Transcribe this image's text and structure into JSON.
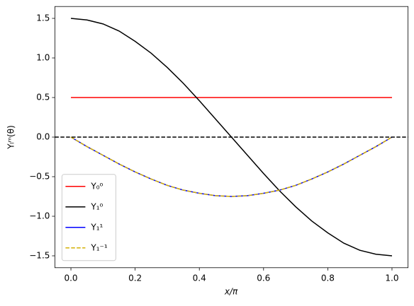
{
  "chart_data": {
    "type": "line",
    "xlabel": "x/π",
    "ylabel": "Yₗᵐ(θ)",
    "x": [
      0,
      0.05,
      0.1,
      0.15,
      0.2,
      0.25,
      0.3,
      0.35,
      0.4,
      0.45,
      0.5,
      0.55,
      0.6,
      0.65,
      0.7,
      0.75,
      0.8,
      0.85,
      0.9,
      0.95,
      1
    ],
    "series": [
      {
        "name": "Y₀⁰",
        "color": "#ff0000",
        "dashed": false,
        "values": [
          0.5,
          0.5,
          0.5,
          0.5,
          0.5,
          0.5,
          0.5,
          0.5,
          0.5,
          0.5,
          0.5,
          0.5,
          0.5,
          0.5,
          0.5,
          0.5,
          0.5,
          0.5,
          0.5,
          0.5,
          0.5
        ]
      },
      {
        "name": "Y₁⁰",
        "color": "#000000",
        "dashed": false,
        "values": [
          1.5,
          1.48,
          1.43,
          1.34,
          1.21,
          1.06,
          0.88,
          0.68,
          0.46,
          0.23,
          0,
          -0.23,
          -0.46,
          -0.68,
          -0.88,
          -1.06,
          -1.21,
          -1.34,
          -1.43,
          -1.48,
          -1.5
        ]
      },
      {
        "name": "Y₁¹",
        "color": "#0000ff",
        "dashed": false,
        "values": [
          0,
          -0.12,
          -0.23,
          -0.34,
          -0.44,
          -0.53,
          -0.61,
          -0.67,
          -0.71,
          -0.74,
          -0.75,
          -0.74,
          -0.71,
          -0.67,
          -0.61,
          -0.53,
          -0.44,
          -0.34,
          -0.23,
          -0.12,
          0
        ]
      },
      {
        "name": "Y₁⁻¹",
        "color": "#d4b106",
        "dashed": true,
        "values": [
          0,
          -0.12,
          -0.23,
          -0.34,
          -0.44,
          -0.53,
          -0.61,
          -0.67,
          -0.71,
          -0.74,
          -0.75,
          -0.74,
          -0.71,
          -0.67,
          -0.61,
          -0.53,
          -0.44,
          -0.34,
          -0.23,
          -0.12,
          0
        ]
      }
    ],
    "reference_line": {
      "y": 0,
      "color": "#000000",
      "dashed": true
    },
    "xlim": [
      -0.05,
      1.05
    ],
    "xticks": [
      {
        "value": 0,
        "label": "0.0"
      },
      0.2,
      0.4,
      0.6,
      0.8,
      {
        "value": 1,
        "label": "1.0"
      }
    ],
    "ylim": [
      -1.65,
      1.65
    ],
    "yticks": [
      {
        "value": -1.5,
        "label": "−1.5"
      },
      {
        "value": -1,
        "label": "−1.0"
      },
      {
        "value": -0.5,
        "label": "−0.5"
      },
      {
        "value": 0,
        "label": "0.0"
      },
      0.5,
      {
        "value": 1,
        "label": "1.0"
      },
      1.5
    ],
    "legend": "lower left",
    "grid": false
  }
}
